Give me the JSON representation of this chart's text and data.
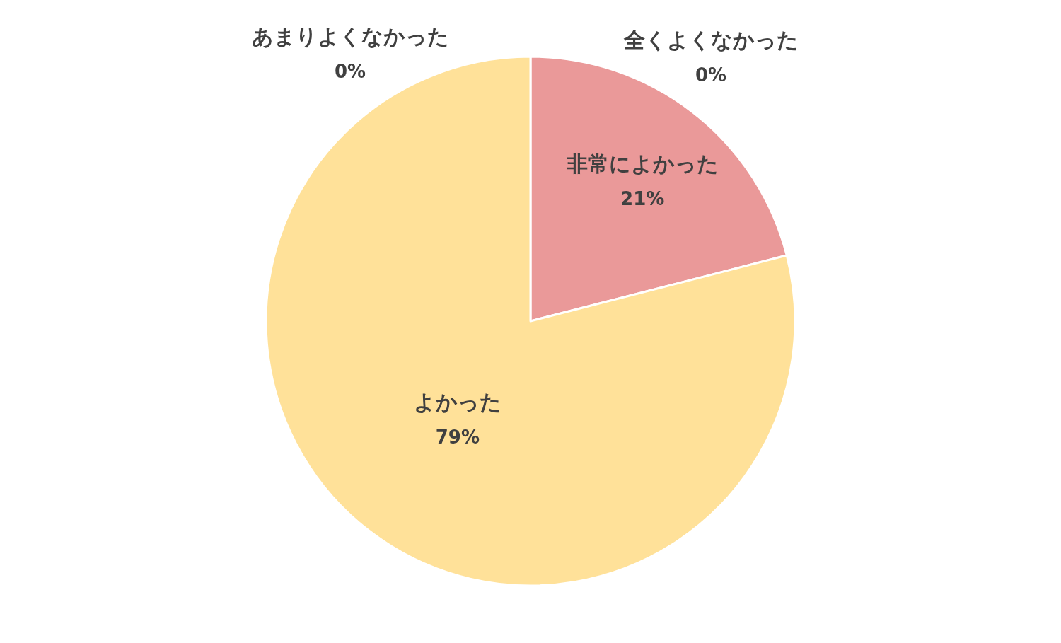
{
  "chart_data": {
    "type": "pie",
    "categories": [
      "非常によかった",
      "よかった",
      "あまりよくなかった",
      "全くよくなかった"
    ],
    "values": [
      21,
      79,
      0,
      0
    ],
    "colors": [
      "#ea9999",
      "#ffe199",
      "#f6b26b",
      "#b4a7d6"
    ],
    "value_labels": [
      "21%",
      "79%",
      "0%",
      "0%"
    ]
  }
}
